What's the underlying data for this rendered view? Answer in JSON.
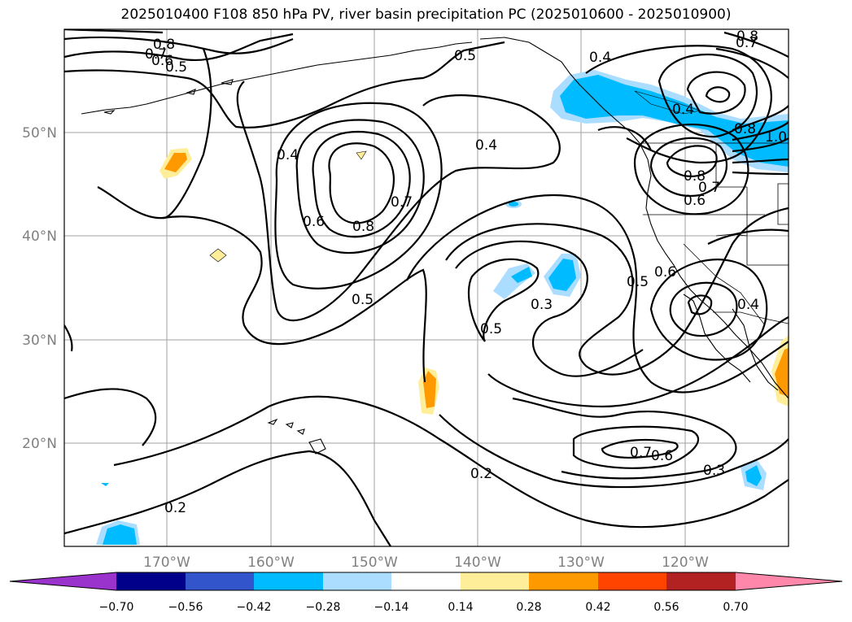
{
  "title": "2025010400 F108 850 hPa PV, river basin precipitation PC (2025010600 - 2025010900)",
  "lon_labels": [
    "170°W",
    "160°W",
    "150°W",
    "140°W",
    "130°W",
    "120°W"
  ],
  "lat_labels": [
    "50°N",
    "40°N",
    "30°N",
    "20°N"
  ],
  "colorbar": {
    "tick_labels": [
      "−0.70",
      "−0.56",
      "−0.42",
      "−0.28",
      "−0.14",
      "0.14",
      "0.28",
      "0.42",
      "0.56",
      "0.70"
    ],
    "colors": [
      "#9933cc",
      "#00008b",
      "#3355cc",
      "#00bbff",
      "#aaddff",
      "#ffffff",
      "#ffee99",
      "#ff9900",
      "#ff4400",
      "#b22222",
      "#ff88aa"
    ]
  },
  "contour_labels": [
    "0.8",
    "0.7",
    "0.6",
    "0.5",
    "0.5",
    "0.4",
    "0.4",
    "0.8",
    "0.7",
    "0.4",
    "0.7",
    "0.8",
    "0.6",
    "0.5",
    "0.5",
    "0.3",
    "0.5",
    "0.6",
    "0.4",
    "0.8",
    "0.7",
    "0.6",
    "0.4",
    "0.8",
    "1.0",
    "0.7",
    "0.6",
    "0.3",
    "0.2",
    "0.2"
  ],
  "colors": {
    "blue_shade": "#00bbff",
    "lightblue_shade": "#aaddff",
    "orange_shade": "#ff9900",
    "yellow_shade": "#ffee99"
  }
}
